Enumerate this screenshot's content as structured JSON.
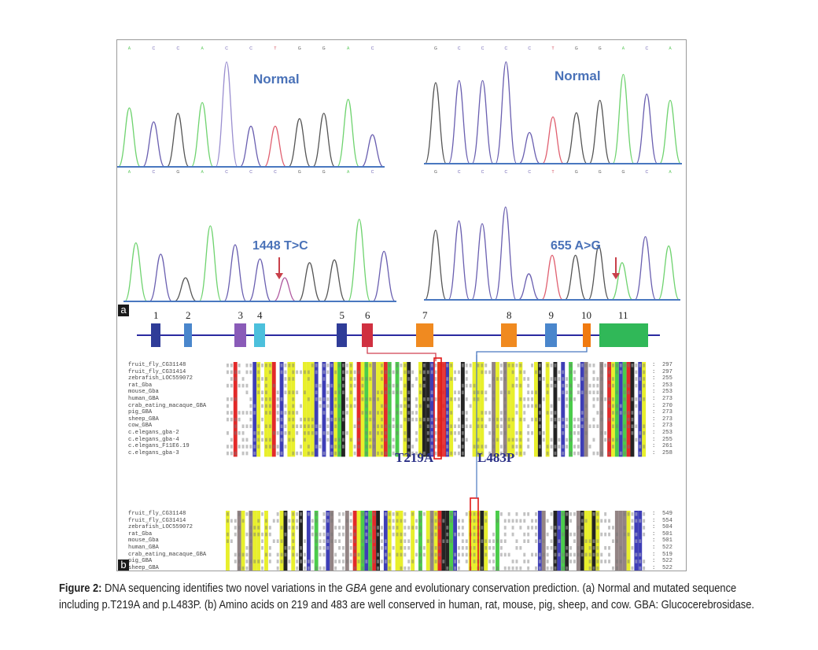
{
  "figure": {
    "panel_a_label": "a",
    "panel_b_label": "b",
    "chromatograms": [
      {
        "id": "tl",
        "label": "Normal",
        "bases_top": [
          "A",
          "C",
          "C",
          "A",
          "C",
          "C",
          "T",
          "G",
          "G",
          "A",
          "C"
        ],
        "bases_bottom": [
          "A",
          "C",
          "G",
          "A",
          "C",
          "C",
          "C",
          "G",
          "G",
          "A",
          "C"
        ],
        "peaks": [
          {
            "h": 0.55,
            "c": "#6fd36f"
          },
          {
            "h": 0.42,
            "c": "#6a5fb0"
          },
          {
            "h": 0.5,
            "c": "#555"
          },
          {
            "h": 0.6,
            "c": "#6fd36f"
          },
          {
            "h": 0.98,
            "c": "#9b8fd0"
          },
          {
            "h": 0.38,
            "c": "#6a5fb0"
          },
          {
            "h": 0.38,
            "c": "#e06070"
          },
          {
            "h": 0.45,
            "c": "#555"
          },
          {
            "h": 0.5,
            "c": "#555"
          },
          {
            "h": 0.63,
            "c": "#6fd36f"
          },
          {
            "h": 0.3,
            "c": "#6a5fb0"
          }
        ],
        "arrow": false
      },
      {
        "id": "tr",
        "label": "Normal",
        "bases_top": [
          "G",
          "C",
          "C",
          "C",
          "C",
          "T",
          "G",
          "G",
          "A",
          "C",
          "A"
        ],
        "bases_bottom": [
          "G",
          "C",
          "C",
          "C",
          "C",
          "T",
          "G",
          "G",
          "G",
          "C",
          "A"
        ],
        "peaks": [
          {
            "h": 0.78,
            "c": "#555"
          },
          {
            "h": 0.8,
            "c": "#6a5fb0"
          },
          {
            "h": 0.8,
            "c": "#6a5fb0"
          },
          {
            "h": 0.98,
            "c": "#6a5fb0"
          },
          {
            "h": 0.3,
            "c": "#6a5fb0"
          },
          {
            "h": 0.45,
            "c": "#e06070"
          },
          {
            "h": 0.49,
            "c": "#555"
          },
          {
            "h": 0.61,
            "c": "#555"
          },
          {
            "h": 0.86,
            "c": "#6fd36f"
          },
          {
            "h": 0.67,
            "c": "#6a5fb0"
          },
          {
            "h": 0.61,
            "c": "#6fd36f"
          }
        ],
        "arrow": false
      },
      {
        "id": "bl",
        "label": "1448 T>C",
        "peaks": [
          {
            "h": 0.62,
            "c": "#6fd36f"
          },
          {
            "h": 0.5,
            "c": "#6a5fb0"
          },
          {
            "h": 0.25,
            "c": "#555"
          },
          {
            "h": 0.8,
            "c": "#6fd36f"
          },
          {
            "h": 0.6,
            "c": "#6a5fb0"
          },
          {
            "h": 0.45,
            "c": "#6a5fb0"
          },
          {
            "h": 0.25,
            "c": "#b05aa0"
          },
          {
            "h": 0.41,
            "c": "#555"
          },
          {
            "h": 0.44,
            "c": "#555"
          },
          {
            "h": 0.87,
            "c": "#6fd36f"
          },
          {
            "h": 0.53,
            "c": "#6a5fb0"
          }
        ],
        "arrow": true
      },
      {
        "id": "br",
        "label": "655 A>G",
        "peaks": [
          {
            "h": 0.75,
            "c": "#555"
          },
          {
            "h": 0.85,
            "c": "#6a5fb0"
          },
          {
            "h": 0.82,
            "c": "#6a5fb0"
          },
          {
            "h": 1.0,
            "c": "#6a5fb0"
          },
          {
            "h": 0.28,
            "c": "#6a5fb0"
          },
          {
            "h": 0.48,
            "c": "#e06070"
          },
          {
            "h": 0.48,
            "c": "#555"
          },
          {
            "h": 0.58,
            "c": "#555"
          },
          {
            "h": 0.4,
            "c": "#6fd36f"
          },
          {
            "h": 0.68,
            "c": "#6a5fb0"
          },
          {
            "h": 0.58,
            "c": "#6fd36f"
          }
        ],
        "arrow": true
      }
    ],
    "exons": [
      {
        "num": "1",
        "color": "#2f3c98"
      },
      {
        "num": "2",
        "color": "#4a86cc"
      },
      {
        "num": "3",
        "color": "#8a5bb8"
      },
      {
        "num": "4",
        "color": "#4cc0dc"
      },
      {
        "num": "5",
        "color": "#2f3c98"
      },
      {
        "num": "6",
        "color": "#d03040"
      },
      {
        "num": "7",
        "color": "#f08a20"
      },
      {
        "num": "8",
        "color": "#f08a20"
      },
      {
        "num": "9",
        "color": "#4a86cc"
      },
      {
        "num": "10",
        "color": "#f07a10"
      },
      {
        "num": "11",
        "color": "#30b858"
      }
    ],
    "mutation_labels": {
      "first": "T219A",
      "second": "L483P"
    },
    "species": [
      "fruit_fly_CG31148",
      "fruit_fly_CG31414",
      "zebrafish_LOC559072",
      "rat_Gba",
      "mouse_Gba",
      "human_GBA",
      "crab_eating_macaque_GBA",
      "pig_GBA",
      "sheep_GBA",
      "cow_GBA",
      "c.elegans_gba-2",
      "c.elegans_gba-4",
      "c.elegans_F11E6.19",
      "c.elegans_gba-3"
    ],
    "block1_end_positions": [
      "297",
      "297",
      "255",
      "253",
      "253",
      "273",
      "270",
      "273",
      "273",
      "273",
      "253",
      "255",
      "261",
      "258"
    ],
    "block2_end_positions": [
      "549",
      "554",
      "504",
      "501",
      "501",
      "522",
      "519",
      "522",
      "522",
      "522",
      "503",
      "507",
      "510",
      "507"
    ]
  },
  "caption": {
    "figure_label": "Figure 2:",
    "text_1": " DNA sequencing identifies two novel variations in the ",
    "gene": "GBA",
    "text_2": " gene and evolutionary conservation prediction. (a) Normal and mutated sequence including p.T219A and p.L483P. (b) Amino acids on 219 and 483 are well conserved in human, rat, mouse, pig, sheep, and cow. GBA: Glucocerebrosidase."
  }
}
